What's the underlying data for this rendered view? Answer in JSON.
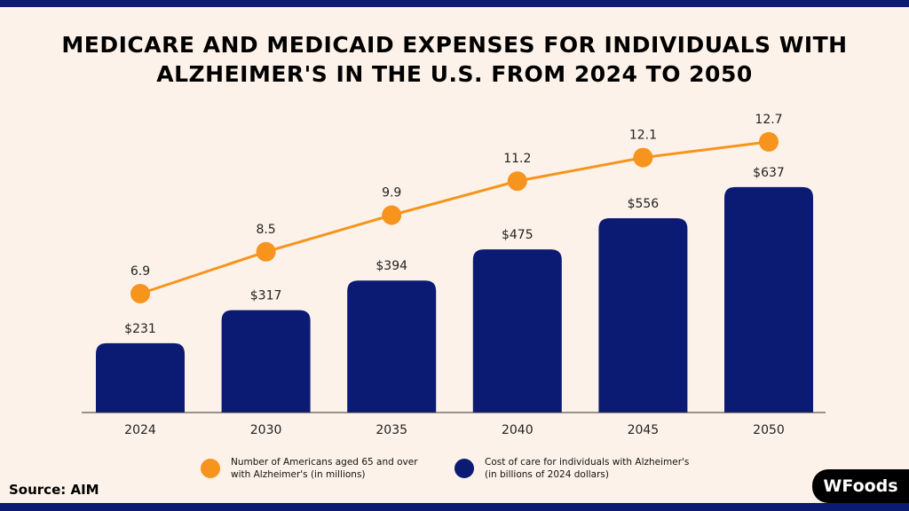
{
  "title_line1": "MEDICARE AND MEDICAID EXPENSES FOR INDIVIDUALS WITH",
  "title_line2": "ALZHEIMER'S IN THE U.S. FROM 2024 TO 2050",
  "source": "Source: AIM",
  "logo_text": "WFoods",
  "colors": {
    "bar": "#0b1a72",
    "line": "#f7941d",
    "background": "#fdf2e9"
  },
  "chart_data": {
    "type": "bar+line",
    "categories": [
      "2024",
      "2030",
      "2035",
      "2040",
      "2045",
      "2050"
    ],
    "series": [
      {
        "name": "Number of Americans aged 65 and over with Alzheimer's (in millions)",
        "type": "line",
        "values": [
          6.9,
          8.5,
          9.9,
          11.2,
          12.1,
          12.7
        ],
        "labels": [
          "6.9",
          "8.5",
          "9.9",
          "11.2",
          "12.1",
          "12.7"
        ]
      },
      {
        "name": "Cost of care for individuals with Alzheimer's (in billions of 2024 dollars)",
        "type": "bar",
        "values": [
          231,
          317,
          394,
          475,
          556,
          637
        ],
        "labels": [
          "$231",
          "$317",
          "$394",
          "$475",
          "$556",
          "$637"
        ]
      }
    ],
    "grid": false,
    "legend_placement": "bottom"
  },
  "legend": {
    "line_l1": "Number of Americans aged 65 and over",
    "line_l2": "with Alzheimer's (in millions)",
    "bar_l1": "Cost of care for individuals with Alzheimer's",
    "bar_l2": "(in billions of 2024 dollars)"
  }
}
